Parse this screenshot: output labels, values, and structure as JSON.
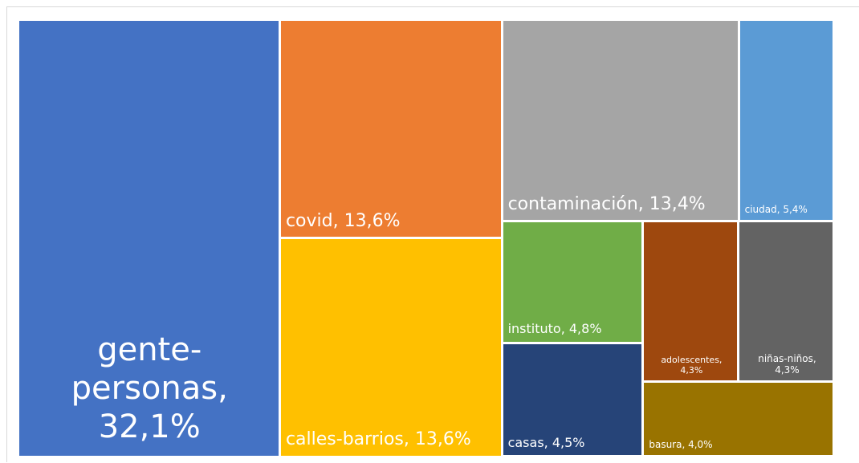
{
  "chart_data": {
    "type": "treemap",
    "values": [
      32.1,
      13.6,
      13.6,
      13.4,
      5.4,
      4.8,
      4.5,
      4.3,
      4.3,
      4.0
    ],
    "value_labels": [
      "gente-personas, 32,1%",
      "covid, 13,6%",
      "calles-barrios, 13,6%",
      "contaminación, 13,4%",
      "ciudad, 5,4%",
      "instituto, 4,8%",
      "casas, 4,5%",
      "adolescentes, 4,3%",
      "niñas-niños, 4,3%",
      "basura, 4,0%"
    ],
    "colors": [
      "#4472c4",
      "#ed7d31",
      "#ffc000",
      "#a5a5a5",
      "#5b9bd5",
      "#70ad47",
      "#264478",
      "#9e480e",
      "#636363",
      "#997300"
    ]
  }
}
